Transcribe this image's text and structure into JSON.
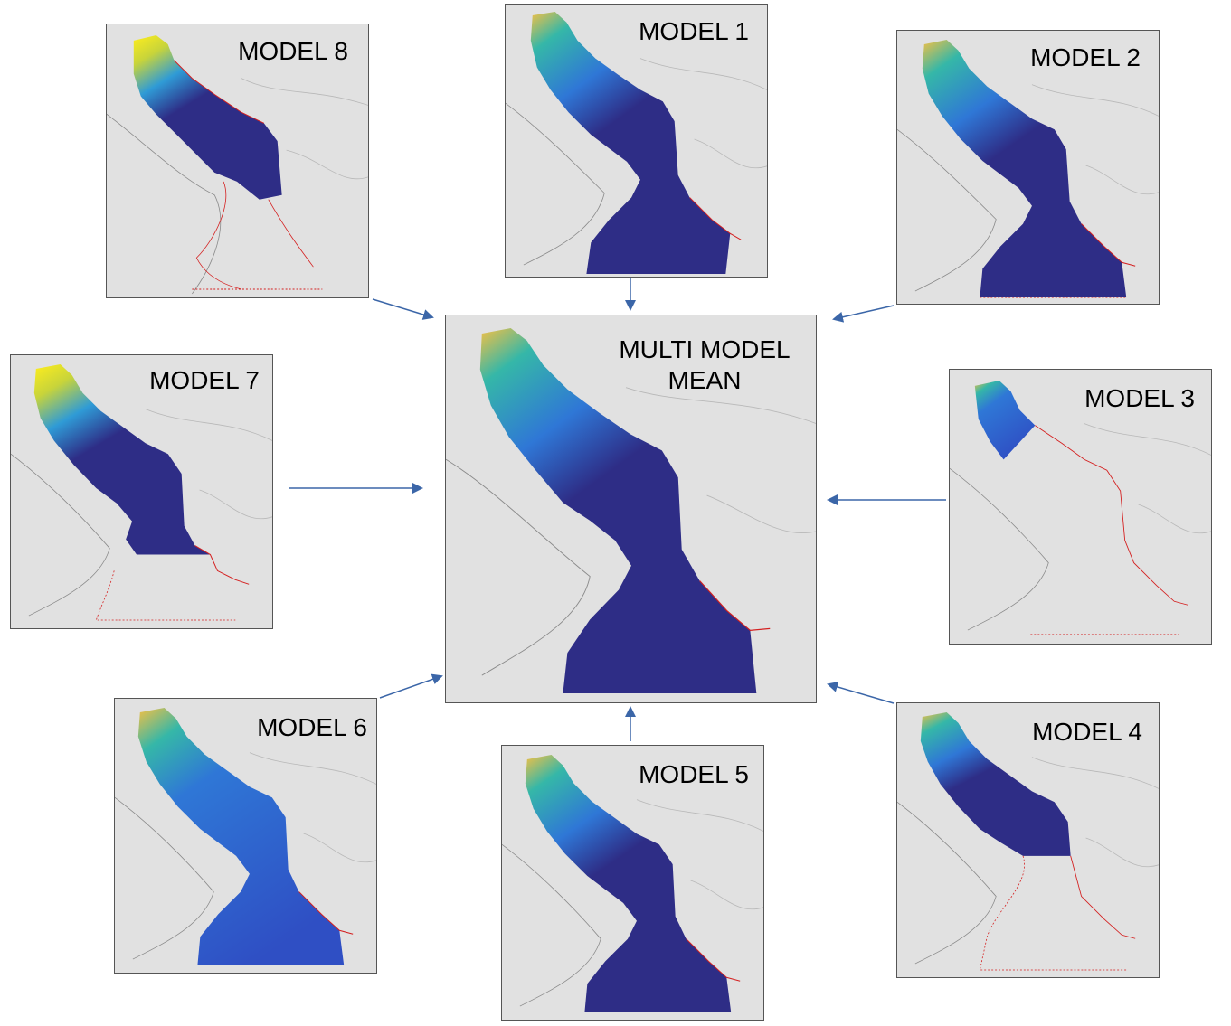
{
  "panels": {
    "mean": {
      "title_line1": "MULTI MODEL",
      "title_line2": "MEAN"
    },
    "model1": {
      "title": "MODEL 1"
    },
    "model2": {
      "title": "MODEL 2"
    },
    "model3": {
      "title": "MODEL 3"
    },
    "model4": {
      "title": "MODEL 4"
    },
    "model5": {
      "title": "MODEL 5"
    },
    "model6": {
      "title": "MODEL 6"
    },
    "model7": {
      "title": "MODEL 7"
    },
    "model8": {
      "title": "MODEL 8"
    }
  },
  "colors": {
    "panel_background": "#e1e1e1",
    "sea_deep": "#2e2d86",
    "sea_mid": "#2f77d6",
    "sea_shallow_teal": "#35b7a8",
    "sea_warm": "#f6c043",
    "sea_hot": "#ffee1c",
    "coast_outline": "#d42020",
    "land_border": "#7a7a7a",
    "arrow": "#3b66a8"
  },
  "arrows": [
    {
      "from": "model8",
      "to": "mean"
    },
    {
      "from": "model1",
      "to": "mean"
    },
    {
      "from": "model2",
      "to": "mean"
    },
    {
      "from": "model7",
      "to": "mean"
    },
    {
      "from": "model3",
      "to": "mean"
    },
    {
      "from": "model6",
      "to": "mean"
    },
    {
      "from": "model5",
      "to": "mean"
    },
    {
      "from": "model4",
      "to": "mean"
    }
  ]
}
